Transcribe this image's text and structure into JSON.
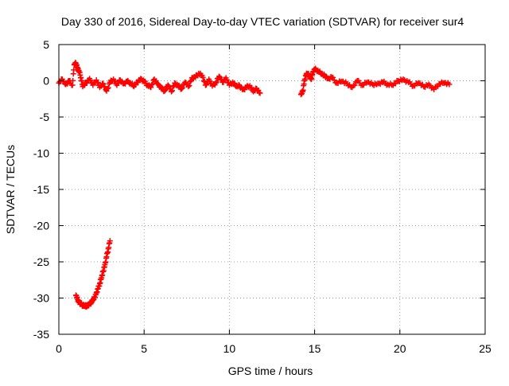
{
  "chart_data": {
    "type": "scatter",
    "title": "Day 330 of 2016, Sidereal Day-to-day VTEC variation (SDTVAR) for receiver sur4",
    "xlabel": "GPS time / hours",
    "ylabel": "SDTVAR / TECUs",
    "xlim": [
      0,
      25
    ],
    "ylim": [
      -35,
      5
    ],
    "xticks": [
      0,
      5,
      10,
      15,
      20,
      25
    ],
    "yticks": [
      5,
      0,
      -5,
      -10,
      -15,
      -20,
      -25,
      -30,
      -35
    ],
    "grid": true,
    "marker": "+",
    "colors": {
      "series": "#ff0000",
      "grid": "#a0a0a0",
      "axes": "#000000"
    },
    "series": [
      {
        "name": "SDTVAR",
        "segments": [
          {
            "x": [
              0.0,
              0.2,
              0.4,
              0.6,
              0.8,
              0.9,
              1.0,
              1.1,
              1.2,
              1.3,
              1.4,
              1.6,
              1.8,
              2.0,
              2.2,
              2.4,
              2.6,
              2.8,
              3.0,
              3.2,
              3.4,
              3.6,
              3.8,
              4.0,
              4.2,
              4.4,
              4.6,
              4.8,
              5.0,
              5.2,
              5.4,
              5.6,
              5.8,
              6.0,
              6.2,
              6.4,
              6.6,
              6.8,
              7.0,
              7.2,
              7.4,
              7.6,
              7.8,
              8.0,
              8.2,
              8.4,
              8.6,
              8.8,
              9.0,
              9.2,
              9.4,
              9.6,
              9.8,
              10.0,
              10.2,
              10.4,
              10.6,
              10.8,
              11.0,
              11.2,
              11.4,
              11.6,
              11.8
            ],
            "y": [
              -0.3,
              0.2,
              -0.5,
              0.0,
              -0.6,
              2.2,
              2.4,
              1.8,
              1.2,
              0.4,
              -0.8,
              -0.3,
              0.3,
              -0.6,
              0.1,
              -0.9,
              -0.4,
              -1.4,
              -0.2,
              0.2,
              -0.6,
              0.1,
              -0.4,
              -0.1,
              -0.3,
              -0.8,
              -0.2,
              0.3,
              -0.1,
              -0.6,
              -0.9,
              0.2,
              -0.4,
              -1.0,
              -1.4,
              -0.6,
              -1.5,
              -0.3,
              -0.7,
              -1.1,
              -0.2,
              -0.8,
              0.4,
              0.5,
              1.0,
              0.7,
              -0.6,
              0.2,
              -0.7,
              -0.3,
              0.6,
              -0.2,
              0.4,
              -0.6,
              -0.2,
              -0.8,
              -0.7,
              -1.2,
              -0.9,
              -0.7,
              -1.5,
              -1.1,
              -1.7
            ]
          },
          {
            "x": [
              1.0,
              1.1,
              1.2,
              1.3,
              1.4,
              1.5,
              1.6,
              1.7,
              1.8,
              1.9,
              2.0,
              2.1,
              2.2,
              2.3,
              2.4,
              2.5,
              2.6,
              2.7,
              2.8,
              2.9,
              3.0
            ],
            "y": [
              -29.6,
              -30.2,
              -30.6,
              -30.8,
              -31.0,
              -31.1,
              -31.1,
              -31.0,
              -30.8,
              -30.6,
              -30.3,
              -29.9,
              -29.3,
              -28.7,
              -28.0,
              -27.2,
              -26.3,
              -25.4,
              -24.3,
              -23.2,
              -22.1
            ]
          },
          {
            "x": [
              14.2,
              14.3,
              14.4,
              14.5,
              14.6,
              14.7,
              14.8,
              14.9,
              15.0,
              15.2,
              15.4,
              15.6,
              15.8,
              16.0,
              16.3,
              16.6,
              16.9,
              17.2,
              17.5,
              17.8,
              18.1,
              18.4,
              18.7,
              19.0,
              19.3,
              19.6,
              19.9,
              20.2,
              20.5,
              20.8,
              21.1,
              21.4,
              21.7,
              22.0,
              22.3,
              22.6,
              22.9
            ],
            "y": [
              -1.9,
              -1.5,
              0.0,
              0.8,
              1.0,
              0.6,
              0.2,
              1.2,
              1.6,
              1.4,
              0.9,
              0.7,
              0.3,
              0.5,
              -0.3,
              -0.1,
              -0.4,
              -0.9,
              0.0,
              -0.6,
              -0.2,
              -0.5,
              -0.4,
              -0.2,
              -0.5,
              -0.6,
              0.0,
              0.2,
              -0.2,
              -0.7,
              -0.3,
              -0.8,
              -0.5,
              -1.2,
              -0.4,
              -0.3,
              -0.5
            ]
          }
        ]
      }
    ]
  }
}
